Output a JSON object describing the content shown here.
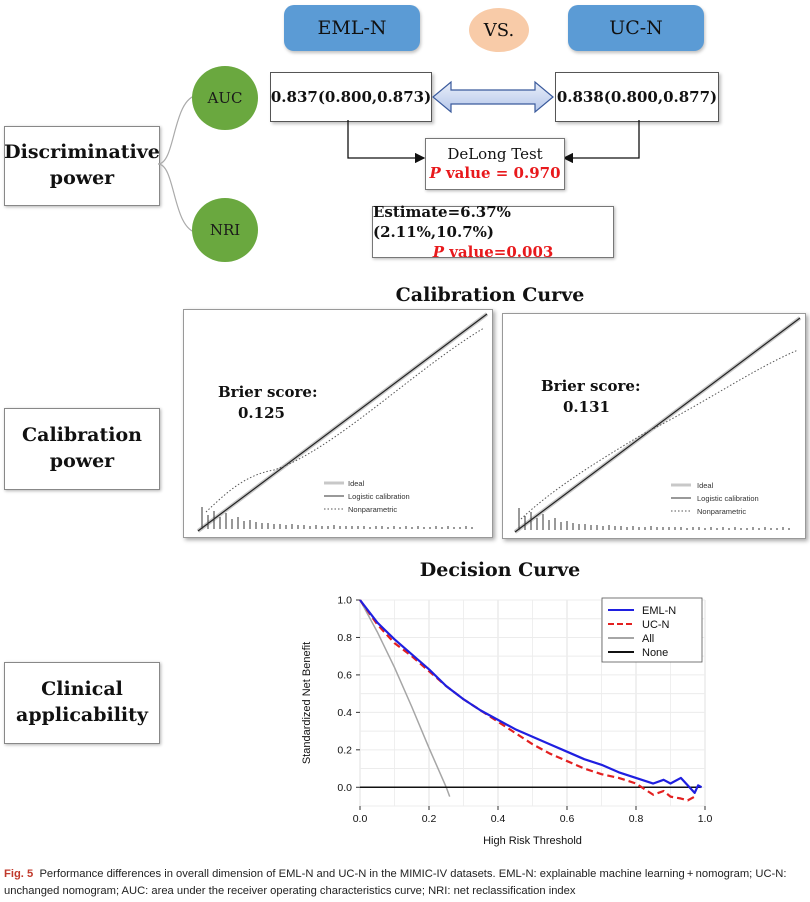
{
  "header": {
    "left_label": "EML-N",
    "vs_label": "VS.",
    "right_label": "UC-N"
  },
  "discriminative": {
    "section_label": [
      "Discriminative",
      "power"
    ],
    "auc_label": "AUC",
    "nri_label": "NRI",
    "auc_left": "0.837(0.800,0.873)",
    "auc_right": "0.838(0.800,0.877)",
    "delong_title": "DeLong Test",
    "delong_p_italic": "P",
    "delong_p_rest": " value = 0.970",
    "nri_estimate": "Estimate=6.37%(2.11%,10.7%)",
    "nri_p_italic": "P",
    "nri_p_rest": " value=0.003"
  },
  "calibration": {
    "section_label": [
      "Calibration",
      "power"
    ],
    "title": "Calibration Curve",
    "left": {
      "brier_label": "Brier score:",
      "brier_value": "0.125"
    },
    "right": {
      "brier_label": "Brier score:",
      "brier_value": "0.131"
    },
    "legend": [
      "Ideal",
      "Logistic calibration",
      "Nonparametric"
    ]
  },
  "clinical": {
    "section_label": [
      "Clinical",
      "applicability"
    ],
    "title": "Decision Curve"
  },
  "caption": {
    "fig_label": "Fig. 5",
    "text": "Performance differences in overall dimension of EML-N and UC-N in the MIMIC-IV datasets. EML-N: explainable machine learning + nomogram; UC-N: unchanged nomogram; AUC: area under the receiver operating characteristics curve; NRI: net reclassification index"
  },
  "chart_data": {
    "type": "line",
    "title": "Decision Curve",
    "xlabel": "High Risk Threshold",
    "ylabel": "Standardized Net Benefit",
    "xlim": [
      0,
      1
    ],
    "ylim": [
      -0.1,
      1.0
    ],
    "xticks": [
      "0.0",
      "0.2",
      "0.4",
      "0.6",
      "0.8",
      "1.0"
    ],
    "yticks": [
      "0.0",
      "0.2",
      "0.4",
      "0.6",
      "0.8",
      "1.0"
    ],
    "legend": "top-right",
    "series": [
      {
        "name": "EML-N",
        "color": "#1f1fe0",
        "dash": "solid",
        "x": [
          0.0,
          0.05,
          0.1,
          0.15,
          0.2,
          0.25,
          0.3,
          0.35,
          0.4,
          0.45,
          0.5,
          0.55,
          0.6,
          0.65,
          0.7,
          0.75,
          0.8,
          0.85,
          0.88,
          0.9,
          0.93,
          0.95,
          0.97,
          0.98,
          0.99
        ],
        "y": [
          1.0,
          0.88,
          0.79,
          0.71,
          0.63,
          0.54,
          0.47,
          0.41,
          0.36,
          0.31,
          0.27,
          0.23,
          0.19,
          0.15,
          0.12,
          0.08,
          0.05,
          0.02,
          0.04,
          0.02,
          0.05,
          0.01,
          -0.03,
          0.01,
          0.0
        ]
      },
      {
        "name": "UC-N",
        "color": "#e32020",
        "dash": "dashed",
        "x": [
          0.0,
          0.05,
          0.1,
          0.15,
          0.2,
          0.25,
          0.3,
          0.35,
          0.4,
          0.45,
          0.5,
          0.55,
          0.6,
          0.65,
          0.7,
          0.75,
          0.8,
          0.85,
          0.88,
          0.9,
          0.93,
          0.95,
          0.97
        ],
        "y": [
          1.0,
          0.87,
          0.77,
          0.7,
          0.62,
          0.54,
          0.47,
          0.41,
          0.35,
          0.29,
          0.23,
          0.18,
          0.14,
          0.1,
          0.07,
          0.05,
          0.02,
          -0.04,
          -0.02,
          -0.05,
          -0.06,
          -0.07,
          -0.05
        ]
      },
      {
        "name": "All",
        "color": "#a6a6a6",
        "dash": "solid",
        "x": [
          0.0,
          0.05,
          0.1,
          0.15,
          0.2,
          0.25,
          0.26
        ],
        "y": [
          1.0,
          0.83,
          0.64,
          0.43,
          0.21,
          0.0,
          -0.05
        ]
      },
      {
        "name": "None",
        "color": "#111111",
        "dash": "solid",
        "x": [
          0.0,
          1.0
        ],
        "y": [
          0.0,
          0.0
        ]
      }
    ]
  }
}
